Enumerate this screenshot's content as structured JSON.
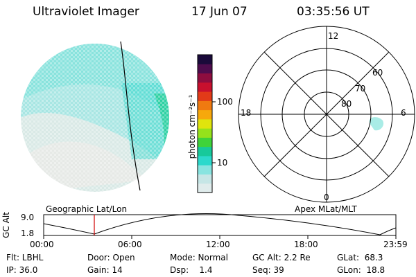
{
  "header": {
    "instrument": "Ultraviolet Imager",
    "date": "17 Jun 07",
    "time": "03:35:56 UT"
  },
  "colorbar": {
    "unit": "photon cm⁻²s⁻¹",
    "ticks": [
      "100",
      "10"
    ],
    "colors": [
      "#e0ecec",
      "#c6e6e6",
      "#88e4e0",
      "#2cd9cc",
      "#17c99b",
      "#3fd33a",
      "#96e21b",
      "#e0e40d",
      "#f7a80c",
      "#f07a10",
      "#e23a18",
      "#c8102e",
      "#8e0d3f",
      "#4e0c4d",
      "#1a0a3a"
    ]
  },
  "polar_plot": {
    "mlt_labels": {
      "top": "12",
      "left": "18",
      "right": "6",
      "bottom": "0"
    },
    "lat_labels": [
      "60",
      "70",
      "80"
    ]
  },
  "timeline": {
    "ylabel": "GC Alt",
    "y_ticks": [
      "9.0",
      "1.8"
    ],
    "left_caption": "Geographic Lat/Lon",
    "right_caption": "Apex MLat/MLT",
    "x_ticks": [
      "00:00",
      "06:00",
      "12:00",
      "18:00",
      "23:59"
    ],
    "marker_time": "03:35:56"
  },
  "info": {
    "row1": {
      "flt": "Flt: LBHL",
      "door": "Door: Open",
      "mode": "Mode: Normal",
      "gcalt": "GC Alt: 2.2 Re",
      "glat": "GLat:  68.3"
    },
    "row2": {
      "ip": "IP: 36.0",
      "gain": "Gain: 14",
      "dsp": "Dsp:    1.4",
      "seq": "Seq: 39",
      "glon": "GLon:  18.8"
    }
  }
}
